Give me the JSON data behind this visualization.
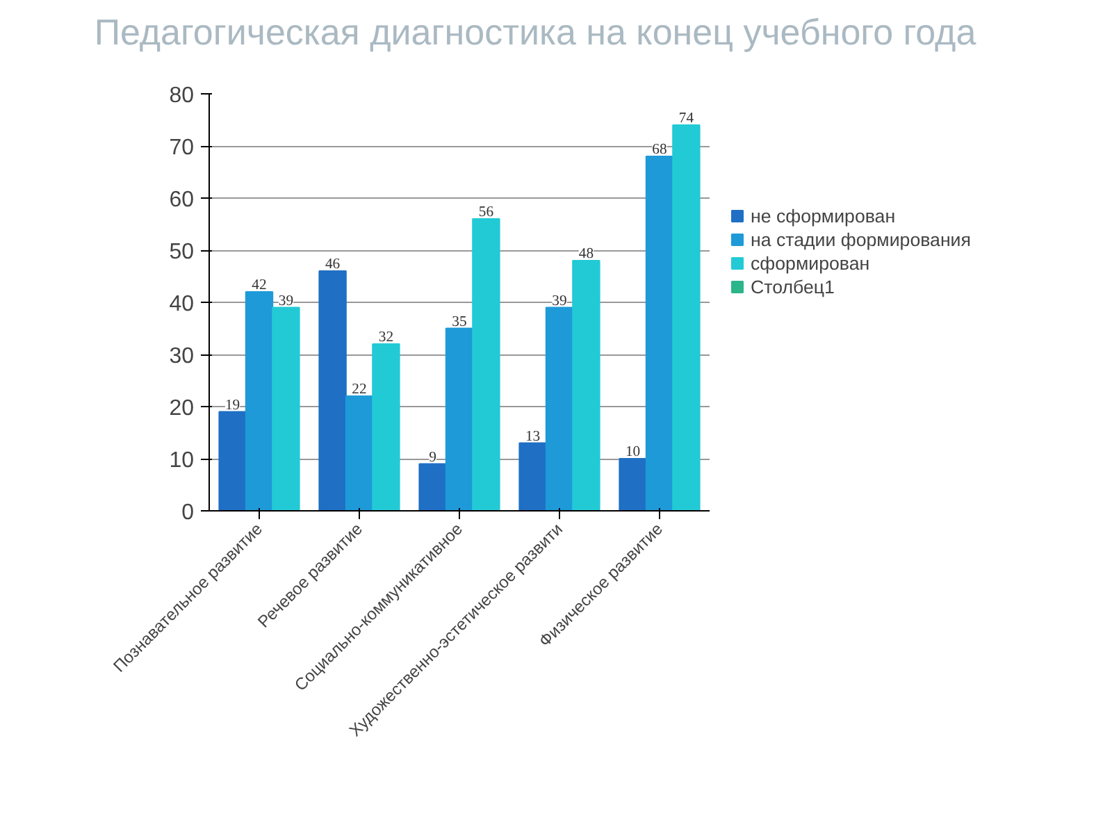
{
  "chart_data": {
    "type": "bar",
    "title": "Педагогическая диагностика на конец учебного года",
    "categories": [
      "Познавательное развитие",
      "Речевое развитие",
      "Социально-коммуникативное",
      "Художественно-эстетическое развити",
      "Физическое развитие"
    ],
    "series": [
      {
        "name": "не сформирован",
        "color": "#1f6fc4",
        "values": [
          19,
          46,
          9,
          13,
          10
        ]
      },
      {
        "name": "на стадии формирования",
        "color": "#1e9ad8",
        "values": [
          42,
          22,
          35,
          39,
          68
        ]
      },
      {
        "name": "сформирован",
        "color": "#22cad6",
        "values": [
          39,
          32,
          56,
          48,
          74
        ]
      },
      {
        "name": "Столбец1",
        "color": "#2db58a",
        "values": [
          null,
          null,
          null,
          null,
          null
        ]
      }
    ],
    "ylim": [
      0,
      80
    ],
    "yticks": [
      0,
      10,
      20,
      30,
      40,
      50,
      60,
      70,
      80
    ],
    "grid": "y",
    "legend": "right",
    "data_labels": true
  }
}
